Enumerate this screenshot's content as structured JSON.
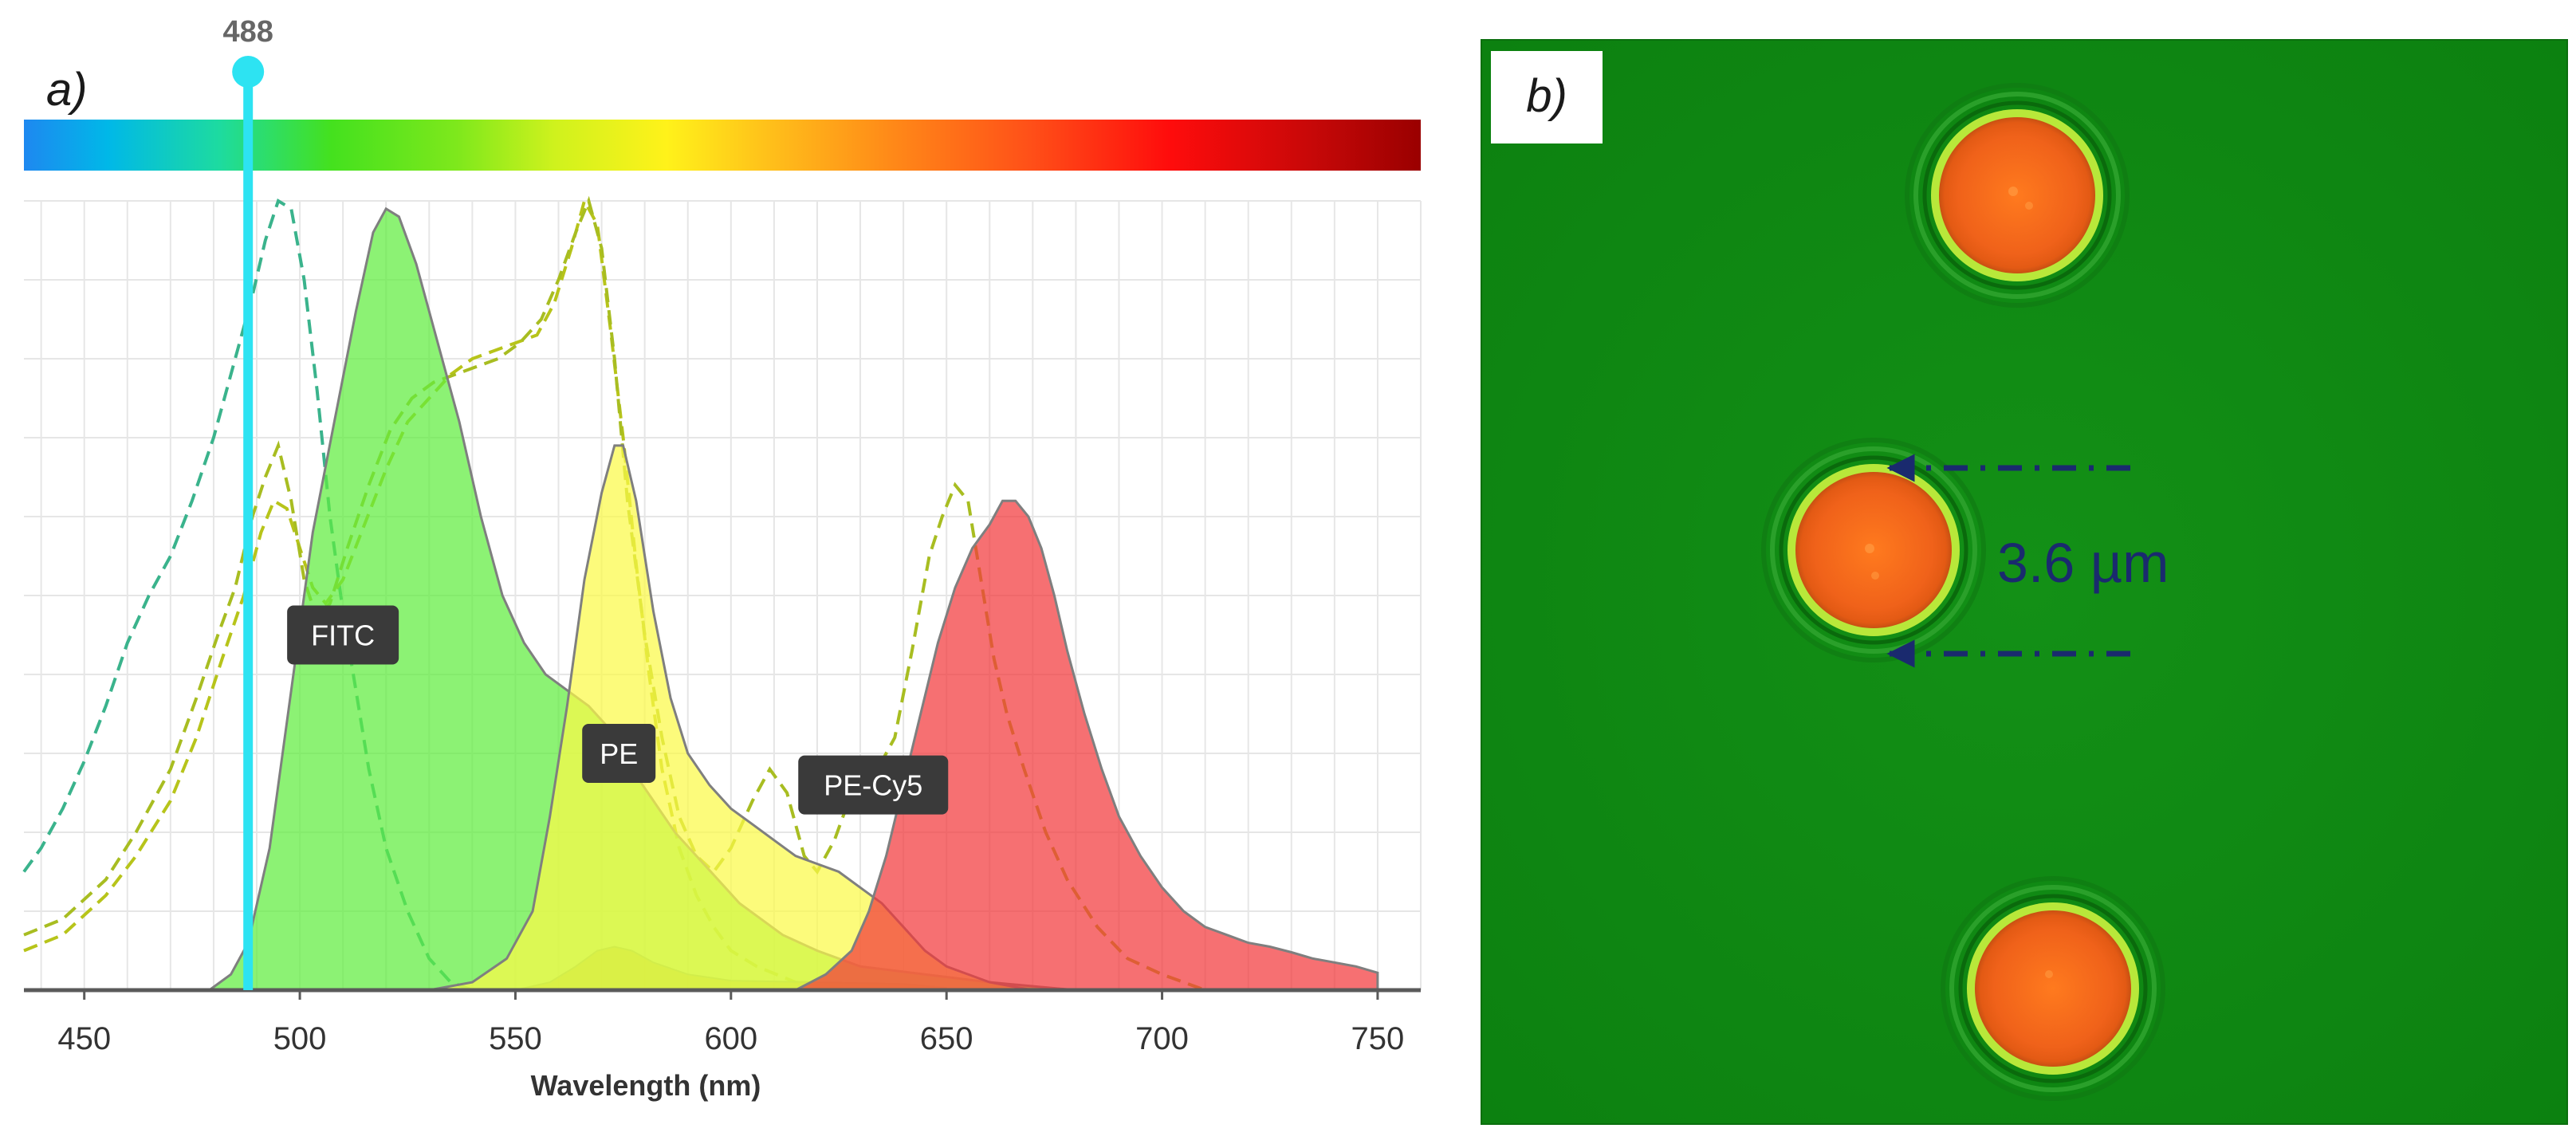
{
  "chart_data": {
    "type": "area",
    "panel_label": "a)",
    "xlabel": "Wavelength (nm)",
    "ylabel": "",
    "xlim": [
      436,
      760
    ],
    "ylim": [
      0,
      100
    ],
    "x_ticks": [
      {
        "value": 450,
        "label": "450"
      },
      {
        "value": 500,
        "label": "500"
      },
      {
        "value": 550,
        "label": "550"
      },
      {
        "value": 600,
        "label": "600"
      },
      {
        "value": 650,
        "label": "650"
      },
      {
        "value": 700,
        "label": "700"
      },
      {
        "value": 750,
        "label": "750"
      }
    ],
    "grid": true,
    "laser_line": {
      "value": 488,
      "label": "488",
      "color": "#2de3f2"
    },
    "emission_series": [
      {
        "name": "FITC",
        "label": "FITC",
        "label_at": [
          510,
          45
        ],
        "color": "#5fed3f",
        "points": [
          [
            479,
            0
          ],
          [
            484,
            2
          ],
          [
            488,
            6
          ],
          [
            493,
            18
          ],
          [
            498,
            38
          ],
          [
            503,
            58
          ],
          [
            508,
            72
          ],
          [
            513,
            86
          ],
          [
            517,
            96
          ],
          [
            520,
            99
          ],
          [
            523,
            98
          ],
          [
            527,
            92
          ],
          [
            532,
            82
          ],
          [
            537,
            72
          ],
          [
            542,
            60
          ],
          [
            547,
            50
          ],
          [
            552,
            44
          ],
          [
            557,
            40
          ],
          [
            562,
            38
          ],
          [
            567,
            36
          ],
          [
            572,
            33
          ],
          [
            577,
            28
          ],
          [
            582,
            24
          ],
          [
            587,
            20
          ],
          [
            592,
            17
          ],
          [
            597,
            14
          ],
          [
            602,
            11
          ],
          [
            607,
            9
          ],
          [
            612,
            7
          ],
          [
            620,
            5
          ],
          [
            630,
            3
          ],
          [
            645,
            2
          ],
          [
            660,
            1
          ],
          [
            680,
            0
          ]
        ]
      },
      {
        "name": "PE",
        "label": "PE",
        "label_at": [
          574,
          30
        ],
        "color": "#fbfa48",
        "points": [
          [
            530,
            0
          ],
          [
            540,
            1
          ],
          [
            548,
            4
          ],
          [
            554,
            10
          ],
          [
            558,
            22
          ],
          [
            562,
            36
          ],
          [
            566,
            52
          ],
          [
            570,
            63
          ],
          [
            573,
            69
          ],
          [
            575,
            69
          ],
          [
            578,
            62
          ],
          [
            582,
            48
          ],
          [
            586,
            37
          ],
          [
            590,
            30
          ],
          [
            595,
            26
          ],
          [
            600,
            23
          ],
          [
            605,
            21
          ],
          [
            610,
            19
          ],
          [
            615,
            17
          ],
          [
            620,
            16
          ],
          [
            625,
            15
          ],
          [
            630,
            13
          ],
          [
            635,
            11
          ],
          [
            640,
            8
          ],
          [
            645,
            5
          ],
          [
            650,
            3
          ],
          [
            660,
            1
          ],
          [
            670,
            0
          ]
        ]
      },
      {
        "name": "PE-Cy5",
        "label": "PE-Cy5",
        "label_at": [
          633,
          26
        ],
        "color": "#f3393c",
        "points": [
          [
            615,
            0
          ],
          [
            622,
            2
          ],
          [
            628,
            5
          ],
          [
            632,
            10
          ],
          [
            636,
            17
          ],
          [
            640,
            26
          ],
          [
            644,
            35
          ],
          [
            648,
            44
          ],
          [
            652,
            51
          ],
          [
            656,
            56
          ],
          [
            660,
            59
          ],
          [
            663,
            62
          ],
          [
            666,
            62
          ],
          [
            669,
            60
          ],
          [
            672,
            56
          ],
          [
            675,
            50
          ],
          [
            678,
            43
          ],
          [
            682,
            35
          ],
          [
            686,
            28
          ],
          [
            690,
            22
          ],
          [
            695,
            17
          ],
          [
            700,
            13
          ],
          [
            705,
            10
          ],
          [
            710,
            8
          ],
          [
            715,
            7
          ],
          [
            720,
            6
          ],
          [
            725,
            5.5
          ],
          [
            730,
            4.8
          ],
          [
            735,
            4
          ],
          [
            740,
            3.5
          ],
          [
            745,
            3
          ],
          [
            750,
            2.2
          ],
          [
            750,
            0
          ]
        ]
      }
    ],
    "minor_series": [
      {
        "name": "PE-Cy5 (PE excitation overlap)",
        "color": "#e98a23",
        "points": [
          [
            550,
            0
          ],
          [
            558,
            1
          ],
          [
            564,
            3
          ],
          [
            569,
            5
          ],
          [
            573,
            5.5
          ],
          [
            577,
            5
          ],
          [
            582,
            3.5
          ],
          [
            590,
            2
          ],
          [
            600,
            1.2
          ],
          [
            620,
            1
          ],
          [
            640,
            0.8
          ],
          [
            650,
            0.3
          ]
        ]
      }
    ],
    "excitation_series": [
      {
        "name": "FITC excitation",
        "color": "#3ab38c",
        "points": [
          [
            436,
            15
          ],
          [
            440,
            18
          ],
          [
            445,
            23
          ],
          [
            450,
            29
          ],
          [
            455,
            36
          ],
          [
            460,
            44
          ],
          [
            465,
            50
          ],
          [
            470,
            55
          ],
          [
            475,
            62
          ],
          [
            480,
            70
          ],
          [
            485,
            80
          ],
          [
            489,
            88
          ],
          [
            492,
            95
          ],
          [
            495,
            100
          ],
          [
            498,
            99
          ],
          [
            501,
            90
          ],
          [
            504,
            76
          ],
          [
            507,
            60
          ],
          [
            510,
            48
          ],
          [
            513,
            38
          ],
          [
            516,
            28
          ],
          [
            520,
            18
          ],
          [
            525,
            10
          ],
          [
            530,
            4
          ],
          [
            535,
            1
          ],
          [
            540,
            0
          ]
        ]
      },
      {
        "name": "PE excitation",
        "color": "#b7c41a",
        "points": [
          [
            436,
            5
          ],
          [
            445,
            7
          ],
          [
            455,
            12
          ],
          [
            462,
            17
          ],
          [
            470,
            24
          ],
          [
            476,
            32
          ],
          [
            482,
            42
          ],
          [
            487,
            50
          ],
          [
            491,
            58
          ],
          [
            494,
            62
          ],
          [
            497,
            61
          ],
          [
            500,
            56
          ],
          [
            503,
            51
          ],
          [
            506,
            49
          ],
          [
            510,
            52
          ],
          [
            515,
            59
          ],
          [
            520,
            66
          ],
          [
            525,
            72
          ],
          [
            530,
            75
          ],
          [
            535,
            78
          ],
          [
            540,
            80
          ],
          [
            545,
            81
          ],
          [
            550,
            82
          ],
          [
            555,
            83
          ],
          [
            559,
            87
          ],
          [
            563,
            94
          ],
          [
            566,
            100
          ],
          [
            569,
            97
          ],
          [
            572,
            84
          ],
          [
            575,
            70
          ],
          [
            578,
            54
          ],
          [
            581,
            40
          ],
          [
            584,
            28
          ],
          [
            588,
            18
          ],
          [
            592,
            12
          ],
          [
            596,
            8
          ],
          [
            600,
            5
          ],
          [
            606,
            3
          ],
          [
            615,
            1
          ],
          [
            630,
            0
          ]
        ]
      },
      {
        "name": "PE-Cy5 excitation",
        "color": "#a8bd21",
        "points": [
          [
            436,
            7
          ],
          [
            445,
            9
          ],
          [
            455,
            14
          ],
          [
            462,
            20
          ],
          [
            470,
            28
          ],
          [
            476,
            37
          ],
          [
            481,
            45
          ],
          [
            485,
            51
          ],
          [
            489,
            60
          ],
          [
            492,
            65
          ],
          [
            495,
            69
          ],
          [
            498,
            62
          ],
          [
            501,
            52
          ],
          [
            504,
            47
          ],
          [
            507,
            49
          ],
          [
            511,
            56
          ],
          [
            516,
            64
          ],
          [
            521,
            71
          ],
          [
            526,
            75
          ],
          [
            531,
            77
          ],
          [
            536,
            78
          ],
          [
            541,
            79
          ],
          [
            546,
            80
          ],
          [
            551,
            82
          ],
          [
            556,
            85
          ],
          [
            560,
            90
          ],
          [
            564,
            96
          ],
          [
            567,
            100
          ],
          [
            570,
            94
          ],
          [
            573,
            80
          ],
          [
            576,
            62
          ],
          [
            580,
            45
          ],
          [
            584,
            32
          ],
          [
            588,
            22
          ],
          [
            592,
            17
          ],
          [
            596,
            15
          ],
          [
            600,
            18
          ],
          [
            605,
            24
          ],
          [
            609,
            28
          ],
          [
            613,
            25
          ],
          [
            617,
            17
          ],
          [
            620,
            15
          ],
          [
            624,
            19
          ],
          [
            628,
            25
          ],
          [
            633,
            27
          ],
          [
            638,
            32
          ],
          [
            642,
            43
          ],
          [
            646,
            55
          ],
          [
            649,
            60
          ],
          [
            652,
            64
          ],
          [
            655,
            62
          ],
          [
            658,
            52
          ],
          [
            661,
            42
          ],
          [
            664,
            35
          ],
          [
            668,
            28
          ],
          [
            673,
            20
          ],
          [
            678,
            14
          ],
          [
            685,
            8
          ],
          [
            692,
            4
          ],
          [
            700,
            2
          ],
          [
            710,
            0
          ]
        ]
      }
    ],
    "color_bar": {
      "from": 436,
      "to": 760
    },
    "colors": {
      "grid": "#e6e6e6",
      "axis": "#5a5a5a",
      "curve_outline": "#7f7f7f",
      "label_box": "#3a3a3a"
    }
  },
  "micrograph": {
    "panel_label": "b)",
    "scale_label": "3.6 µm",
    "bead_count": 3,
    "colors": {
      "background": "#108a13",
      "bead": "#f06a1a",
      "bead_rim": "#b8e83a",
      "arrow": "#1a2a6e"
    }
  }
}
